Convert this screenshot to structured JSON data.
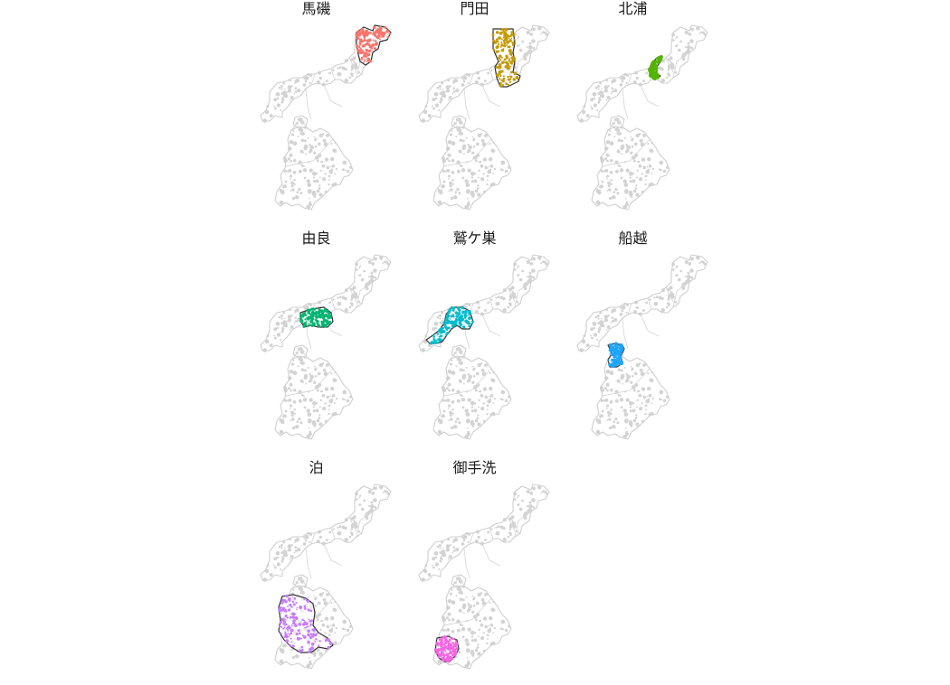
{
  "figure": {
    "districts": [
      {
        "name": "馬磯",
        "color": "#F8766D",
        "region": "northeast"
      },
      {
        "name": "門田",
        "color": "#C49A00",
        "region": "central-north"
      },
      {
        "name": "北浦",
        "color": "#53B400",
        "region": "north"
      },
      {
        "name": "由良",
        "color": "#00B672",
        "region": "west"
      },
      {
        "name": "鷲ケ巣",
        "color": "#00BCCC",
        "region": "far-west"
      },
      {
        "name": "船越",
        "color": "#1CA6FF",
        "region": "isthmus"
      },
      {
        "name": "泊",
        "color": "#C77CFF",
        "region": "south"
      },
      {
        "name": "御手洗",
        "color": "#F564E3",
        "region": "southwest"
      }
    ],
    "panels": [
      {
        "title": "馬磯"
      },
      {
        "title": "門田"
      },
      {
        "title": "北浦"
      },
      {
        "title": "由良"
      },
      {
        "title": "鷲ケ巣"
      },
      {
        "title": "船越"
      },
      {
        "title": "泊"
      },
      {
        "title": "御手洗"
      }
    ]
  }
}
